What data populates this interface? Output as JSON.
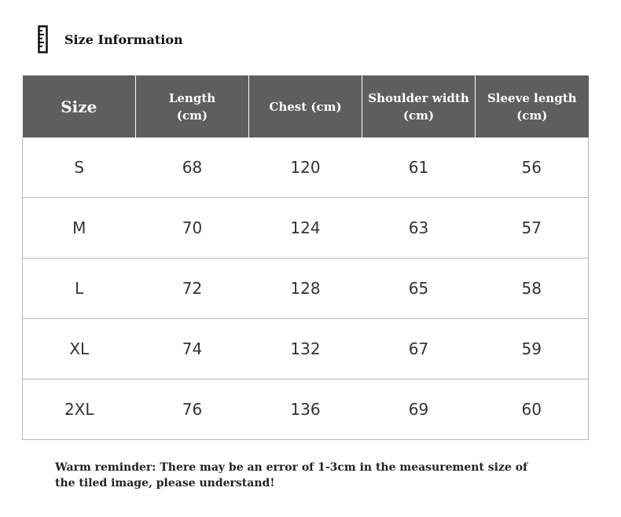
{
  "header": {
    "title": "Size Information",
    "icon": "ruler-icon"
  },
  "table": {
    "columns": [
      {
        "line1": "Size",
        "line2": ""
      },
      {
        "line1": "Length",
        "line2": "(cm)"
      },
      {
        "line1": "Chest (cm)",
        "line2": ""
      },
      {
        "line1": "Shoulder width",
        "line2": "(cm)"
      },
      {
        "line1": "Sleeve length",
        "line2": "(cm)"
      }
    ],
    "rows": [
      [
        "S",
        "68",
        "120",
        "61",
        "56"
      ],
      [
        "M",
        "70",
        "124",
        "63",
        "57"
      ],
      [
        "L",
        "72",
        "128",
        "65",
        "58"
      ],
      [
        "XL",
        "74",
        "132",
        "67",
        "59"
      ],
      [
        "2XL",
        "76",
        "136",
        "69",
        "60"
      ]
    ]
  },
  "footer": {
    "reminder": "Warm reminder: There may be an error of 1-3cm in the measurement size of the tiled image, please understand!"
  },
  "colors": {
    "header_bg": "#5e5e5e",
    "header_text": "#ffffff",
    "grid": "#b8b8b8"
  }
}
